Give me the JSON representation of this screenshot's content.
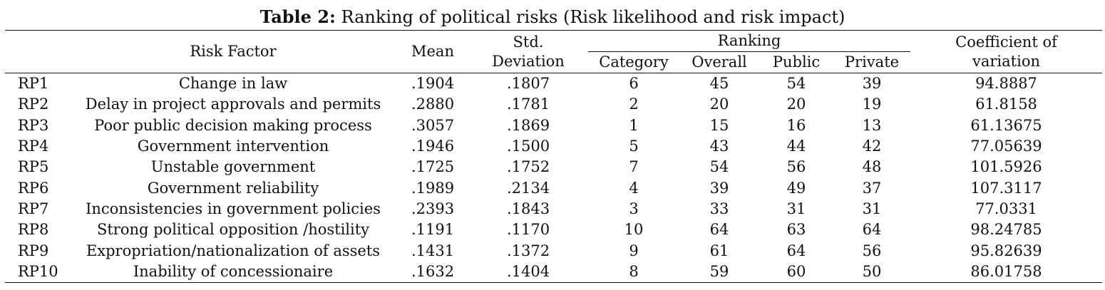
{
  "caption": {
    "lead": "Table 2:",
    "text": " Ranking of political risks (Risk likelihood and risk impact)"
  },
  "headers": {
    "risk_factor": "Risk Factor",
    "mean": "Mean",
    "std_line1": "Std.",
    "std_line2": "Deviation",
    "ranking": "Ranking",
    "category": "Category",
    "overall": "Overall",
    "public": "Public",
    "private": "Private",
    "cov_line1": "Coefficient of",
    "cov_line2": "variation"
  },
  "rows": [
    {
      "id": "RP1",
      "factor": "Change in law",
      "mean": ".1904",
      "std": ".1807",
      "category": "6",
      "overall": "45",
      "public": "54",
      "private": "39",
      "cov": "94.8887"
    },
    {
      "id": "RP2",
      "factor": "Delay in project approvals and permits",
      "mean": ".2880",
      "std": ".1781",
      "category": "2",
      "overall": "20",
      "public": "20",
      "private": "19",
      "cov": "61.8158"
    },
    {
      "id": "RP3",
      "factor": "Poor public decision making process",
      "mean": ".3057",
      "std": ".1869",
      "category": "1",
      "overall": "15",
      "public": "16",
      "private": "13",
      "cov": "61.13675"
    },
    {
      "id": "RP4",
      "factor": "Government intervention",
      "mean": ".1946",
      "std": ".1500",
      "category": "5",
      "overall": "43",
      "public": "44",
      "private": "42",
      "cov": "77.05639"
    },
    {
      "id": "RP5",
      "factor": "Unstable government",
      "mean": ".1725",
      "std": ".1752",
      "category": "7",
      "overall": "54",
      "public": "56",
      "private": "48",
      "cov": "101.5926"
    },
    {
      "id": "RP6",
      "factor": "Government reliability",
      "mean": ".1989",
      "std": ".2134",
      "category": "4",
      "overall": "39",
      "public": "49",
      "private": "37",
      "cov": "107.3117"
    },
    {
      "id": "RP7",
      "factor": "Inconsistencies in government policies",
      "mean": ".2393",
      "std": ".1843",
      "category": "3",
      "overall": "33",
      "public": "31",
      "private": "31",
      "cov": "77.0331"
    },
    {
      "id": "RP8",
      "factor": "Strong political opposition /hostility",
      "mean": ".1191",
      "std": ".1170",
      "category": "10",
      "overall": "64",
      "public": "63",
      "private": "64",
      "cov": "98.24785"
    },
    {
      "id": "RP9",
      "factor": "Expropriation/nationalization of assets",
      "mean": ".1431",
      "std": ".1372",
      "category": "9",
      "overall": "61",
      "public": "64",
      "private": "56",
      "cov": "95.82639"
    },
    {
      "id": "RP10",
      "factor": "Inability of concessionaire",
      "mean": ".1632",
      "std": ".1404",
      "category": "8",
      "overall": "59",
      "public": "60",
      "private": "50",
      "cov": "86.01758"
    }
  ]
}
